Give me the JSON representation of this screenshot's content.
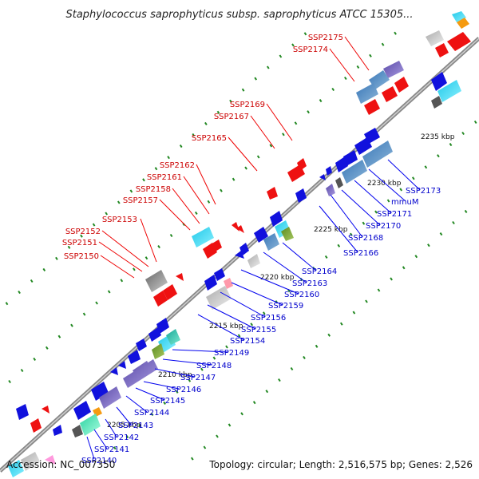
{
  "title": "Staphylococcus saprophyticus subsp. saprophyticus ATCC 15305...",
  "footer": {
    "accession": "Accession: NC_007350",
    "summary": "Topology: circular; Length: 2,516,575 bp; Genes: 2,526"
  },
  "ticks": [
    "2205 kbp",
    "2210 kbp",
    "2215 kbp",
    "2220 kbp",
    "2225 kbp",
    "2230 kbp",
    "2235 kbp"
  ],
  "forward_labels": [
    "SSP2150",
    "SSP2151",
    "SSP2152",
    "SSP2153",
    "SSP2157",
    "SSP2158",
    "SSP2161",
    "SSP2162",
    "SSP2165",
    "SSP2167",
    "SSP2169",
    "SSP2174",
    "SSP2175"
  ],
  "reverse_labels": [
    "SSP2140",
    "SSP2141",
    "SSP2142",
    "SSP2143",
    "SSP2144",
    "SSP2145",
    "SSP2146",
    "SSP2147",
    "SSP2148",
    "SSP2149",
    "SSP2154",
    "SSP2155",
    "SSP2156",
    "SSP2159",
    "SSP2160",
    "SSP2163",
    "SSP2164",
    "SSP2166",
    "SSP2168",
    "SSP2170",
    "SSP2171",
    "mmuM",
    "SSP2173"
  ],
  "colors": {
    "forward_label": "#cc0000",
    "reverse_label": "#0000cc",
    "forward_gene": "#ee1111",
    "reverse_gene": "#1111dd",
    "backbone": "#888888",
    "tick": "#228822"
  }
}
